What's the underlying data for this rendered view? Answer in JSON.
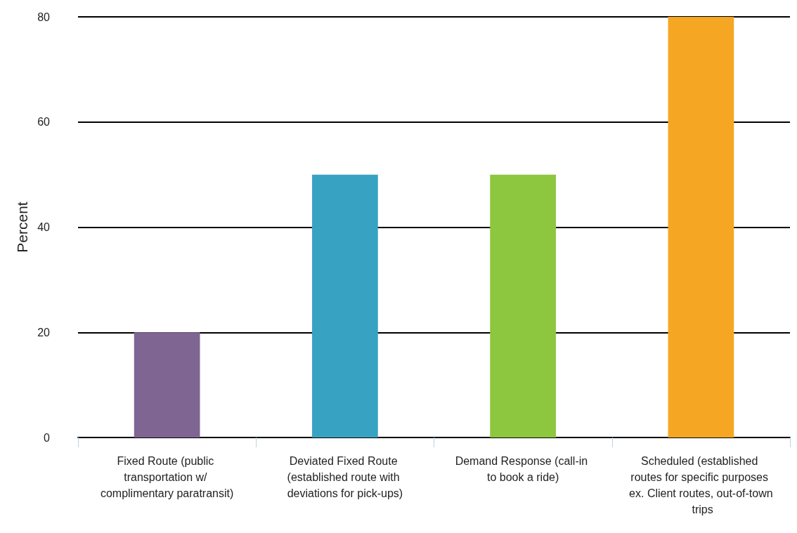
{
  "chart_data": {
    "type": "bar",
    "ylabel": "Percent",
    "categories": [
      "Fixed Route (public transportation w/ complimentary paratransit)",
      "Deviated Fixed Route (established route with deviations for pick-ups)",
      "Demand Response (call-in to book a ride)",
      "Scheduled (established routes for specific purposes ex. Client routes, out-of-town trips"
    ],
    "values": [
      20,
      50,
      50,
      80
    ],
    "colors": [
      "#7f6591",
      "#38a2c2",
      "#8dc63f",
      "#f5a623"
    ],
    "ylim": [
      0,
      80
    ],
    "yticks": [
      0,
      20,
      40,
      60,
      80
    ],
    "grid": "y"
  }
}
